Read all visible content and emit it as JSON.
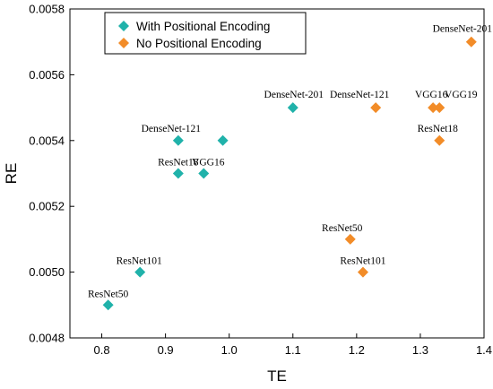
{
  "chart_data": {
    "type": "scatter",
    "xlabel": "TE",
    "ylabel": "RE",
    "xlim": [
      0.75,
      1.4
    ],
    "ylim": [
      0.0048,
      0.0058
    ],
    "xticks": [
      "0.8",
      "0.9",
      "1.0",
      "1.1",
      "1.2",
      "1.3",
      "1.4"
    ],
    "yticks": [
      "0.0048",
      "0.0050",
      "0.0052",
      "0.0054",
      "0.0056",
      "0.0058"
    ],
    "legend_position": "top-left",
    "series": [
      {
        "name": "With Positional Encoding",
        "color": "#20B2AA",
        "points": [
          {
            "label": "ResNet50",
            "x": 0.81,
            "y": 0.0049
          },
          {
            "label": "ResNet101",
            "x": 0.86,
            "y": 0.005
          },
          {
            "label": "ResNet18",
            "x": 0.92,
            "y": 0.0053
          },
          {
            "label": "VGG16",
            "x": 0.96,
            "y": 0.0053
          },
          {
            "label": "DenseNet-121",
            "x": 0.92,
            "y": 0.0054
          },
          {
            "label": "",
            "x": 0.99,
            "y": 0.0054
          },
          {
            "label": "DenseNet-201",
            "x": 1.1,
            "y": 0.0055
          }
        ]
      },
      {
        "name": "No Positional Encoding",
        "color": "#F28C28",
        "points": [
          {
            "label": "ResNet50",
            "x": 1.19,
            "y": 0.0051
          },
          {
            "label": "ResNet101",
            "x": 1.21,
            "y": 0.005
          },
          {
            "label": "DenseNet-121",
            "x": 1.23,
            "y": 0.0055
          },
          {
            "label": "VGG16",
            "x": 1.32,
            "y": 0.0055
          },
          {
            "label": "VGG19",
            "x": 1.33,
            "y": 0.0055
          },
          {
            "label": "ResNet18",
            "x": 1.33,
            "y": 0.0054
          },
          {
            "label": "DenseNet-201",
            "x": 1.38,
            "y": 0.0057
          }
        ]
      }
    ]
  }
}
